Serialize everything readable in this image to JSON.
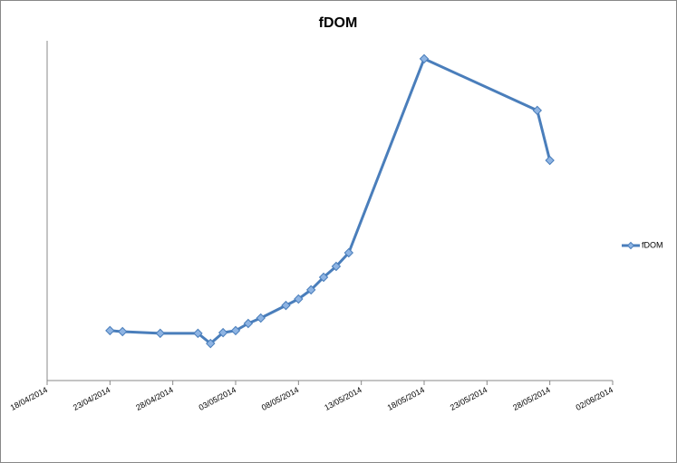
{
  "chart_data": {
    "type": "line",
    "title": "fDOM",
    "x": [
      "2014-04-23",
      "2014-04-24",
      "2014-04-27",
      "2014-04-30",
      "2014-05-01",
      "2014-05-02",
      "2014-05-03",
      "2014-05-04",
      "2014-05-05",
      "2014-05-07",
      "2014-05-08",
      "2014-05-09",
      "2014-05-10",
      "2014-05-11",
      "2014-05-12",
      "2014-05-18",
      "2014-05-27",
      "2014-05-28"
    ],
    "series": [
      {
        "name": "fDOM",
        "color": "#4a7ebb",
        "values": [
          14.7,
          14.4,
          13.9,
          13.9,
          10.9,
          14.1,
          14.7,
          16.8,
          18.4,
          22.1,
          24.0,
          26.7,
          30.4,
          33.6,
          37.6,
          94.7,
          79.5,
          64.8
        ]
      }
    ],
    "xlim": [
      "2014-04-18",
      "2014-06-02"
    ],
    "xticks": [
      {
        "value": "2014-04-18",
        "label": "18/04/2014"
      },
      {
        "value": "2014-04-23",
        "label": "23/04/2014"
      },
      {
        "value": "2014-04-28",
        "label": "28/04/2014"
      },
      {
        "value": "2014-05-03",
        "label": "03/05/2014"
      },
      {
        "value": "2014-05-08",
        "label": "08/05/2014"
      },
      {
        "value": "2014-05-13",
        "label": "13/05/2014"
      },
      {
        "value": "2014-05-18",
        "label": "18/05/2014"
      },
      {
        "value": "2014-05-23",
        "label": "23/05/2014"
      },
      {
        "value": "2014-05-28",
        "label": "28/05/2014"
      },
      {
        "value": "2014-06-02",
        "label": "02/06/2014"
      }
    ],
    "ylim": [
      0,
      100
    ],
    "legend": "right"
  }
}
